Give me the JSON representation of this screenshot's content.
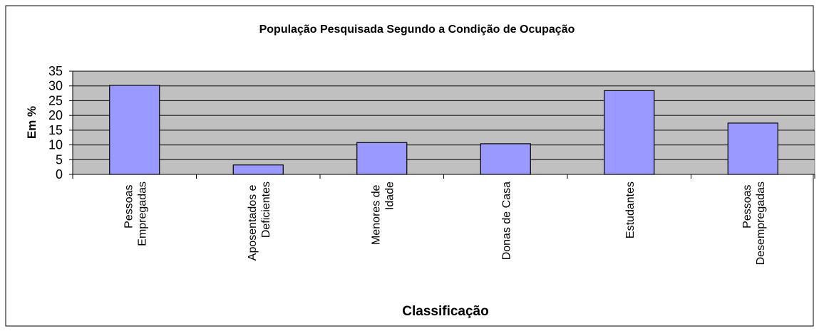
{
  "chart_data": {
    "type": "bar",
    "title": "População Pesquisada Segundo  a Condição de Ocupação",
    "x_label": "Classificação",
    "y_label": "Em %",
    "categories": [
      "Pessoas Empregadas",
      "Aposentados e Deficientes",
      "Menores de Idade",
      "Donas de Casa",
      "Estudantes",
      "Pessoas Desempregadas"
    ],
    "values": [
      30.2,
      3.2,
      10.8,
      10.4,
      28.4,
      17.4
    ],
    "color": "#9999ff",
    "ylim": [
      0,
      35
    ],
    "yticks": [
      0,
      5,
      10,
      15,
      20,
      25,
      30,
      35
    ],
    "grid": true
  }
}
